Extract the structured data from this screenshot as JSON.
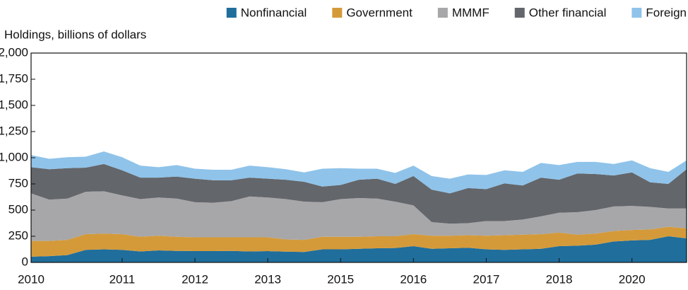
{
  "chart_data": {
    "type": "stacked_area",
    "y_axis_label": "Holdings, billions of dollars",
    "categories": [
      "2010",
      null,
      null,
      null,
      null,
      "2011",
      null,
      null,
      null,
      "2012",
      null,
      null,
      null,
      "2013",
      null,
      null,
      null,
      "2015",
      null,
      null,
      null,
      "2016",
      null,
      null,
      null,
      "2017",
      null,
      null,
      null,
      "2018",
      null,
      null,
      null,
      "2020",
      null,
      null,
      null
    ],
    "series": [
      {
        "name": "Nonfinancial",
        "color": "#1f6e9c",
        "values": [
          55,
          60,
          70,
          120,
          125,
          120,
          105,
          115,
          110,
          108,
          108,
          110,
          105,
          108,
          103,
          100,
          125,
          125,
          130,
          135,
          138,
          155,
          130,
          135,
          140,
          125,
          120,
          125,
          130,
          155,
          160,
          170,
          200,
          210,
          215,
          250,
          230
        ]
      },
      {
        "name": "Government",
        "color": "#d49a3a",
        "values": [
          150,
          145,
          145,
          150,
          150,
          150,
          140,
          140,
          135,
          132,
          132,
          130,
          135,
          132,
          117,
          115,
          120,
          120,
          115,
          115,
          112,
          115,
          125,
          120,
          120,
          130,
          140,
          140,
          140,
          130,
          105,
          105,
          100,
          100,
          100,
          90,
          95
        ]
      },
      {
        "name": "MMMF",
        "color": "#a7a7a9",
        "values": [
          455,
          395,
          395,
          405,
          405,
          370,
          360,
          365,
          365,
          335,
          330,
          345,
          390,
          380,
          385,
          365,
          330,
          360,
          370,
          360,
          330,
          275,
          130,
          115,
          115,
          140,
          135,
          145,
          170,
          190,
          215,
          225,
          235,
          230,
          215,
          175,
          190
        ]
      },
      {
        "name": "Other financial",
        "color": "#63666a",
        "values": [
          250,
          290,
          290,
          230,
          260,
          240,
          205,
          190,
          210,
          225,
          215,
          200,
          180,
          180,
          185,
          190,
          150,
          135,
          175,
          190,
          170,
          280,
          310,
          290,
          335,
          305,
          360,
          325,
          370,
          315,
          370,
          345,
          295,
          320,
          235,
          235,
          375
        ]
      },
      {
        "name": "Foreign",
        "color": "#8fc3ea",
        "values": [
          115,
          100,
          105,
          105,
          120,
          125,
          115,
          100,
          110,
          95,
          100,
          100,
          115,
          110,
          100,
          90,
          170,
          160,
          105,
          95,
          105,
          100,
          130,
          140,
          130,
          135,
          125,
          130,
          140,
          140,
          110,
          115,
          110,
          115,
          135,
          115,
          85
        ]
      }
    ],
    "ylim": [
      0,
      2000
    ],
    "yticks": [
      0,
      250,
      500,
      750,
      {
        "value": 1000,
        "label": "1,000"
      },
      {
        "value": 1250,
        "label": "1,250"
      },
      {
        "value": 1500,
        "label": "1,500"
      },
      {
        "value": 1750,
        "label": "1,750"
      },
      {
        "value": 2000,
        "label": "2,000"
      }
    ],
    "legend": "top-right"
  }
}
